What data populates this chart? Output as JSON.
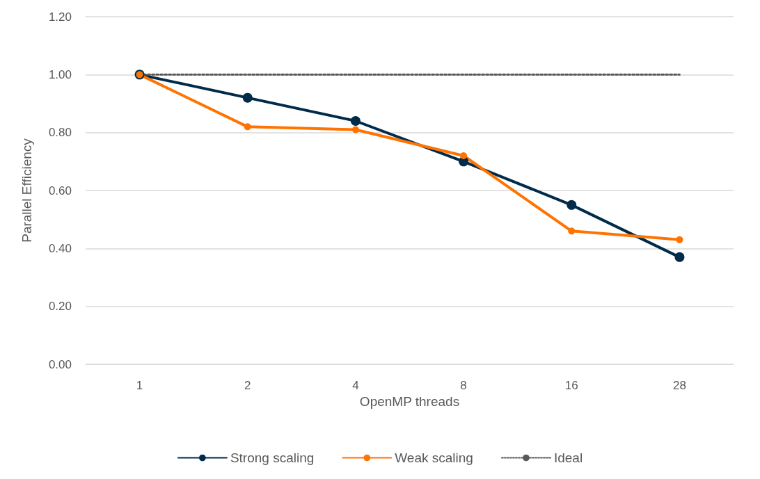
{
  "chart_data": {
    "type": "line",
    "xlabel": "OpenMP threads",
    "ylabel": "Parallel Efficiency",
    "categories": [
      "1",
      "2",
      "4",
      "8",
      "16",
      "28"
    ],
    "series": [
      {
        "name": "Strong scaling",
        "color": "#002b49",
        "values": [
          1.0,
          0.92,
          0.84,
          0.7,
          0.55,
          0.37
        ],
        "marker": "circle",
        "line_style": "solid"
      },
      {
        "name": "Weak scaling",
        "color": "#ff7300",
        "values": [
          1.0,
          0.82,
          0.81,
          0.72,
          0.46,
          0.43
        ],
        "marker": "circle",
        "line_style": "solid"
      },
      {
        "name": "Ideal",
        "color": "#595959",
        "values": [
          1.0,
          1.0,
          1.0,
          1.0,
          1.0,
          1.0
        ],
        "marker": "none",
        "line_style": "dotted"
      }
    ],
    "ylim": [
      0,
      1.2
    ],
    "yticks": [
      {
        "value": 0,
        "label": "0.00"
      },
      {
        "value": 0.2,
        "label": "0.20"
      },
      {
        "value": 0.4,
        "label": "0.40"
      },
      {
        "value": 0.6,
        "label": "0.60"
      },
      {
        "value": 0.8,
        "label": "0.80"
      },
      {
        "value": 1.0,
        "label": "1.00"
      },
      {
        "value": 1.2,
        "label": "1.20"
      }
    ],
    "grid": "y",
    "legend": "bottom"
  }
}
